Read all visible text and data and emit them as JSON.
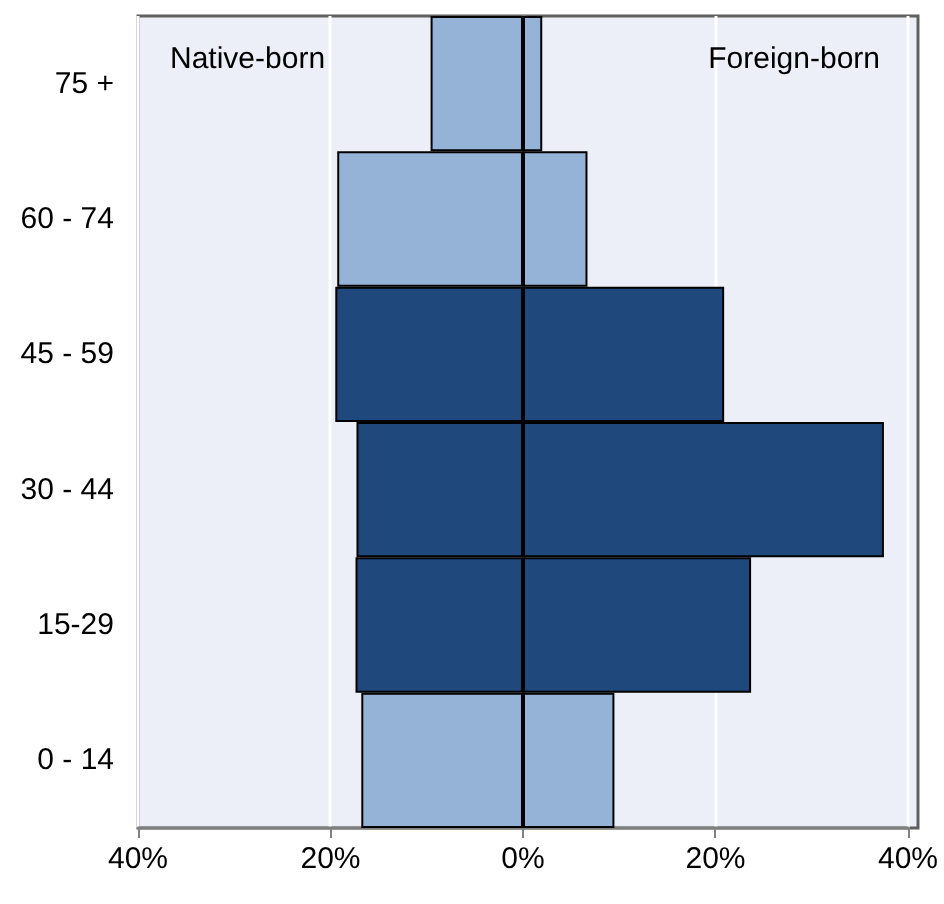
{
  "chart_data": {
    "type": "bar",
    "orientation": "horizontal",
    "stacked": true,
    "categories": [
      "75 +",
      "60 - 74",
      "45 - 59",
      "30 - 44",
      "15-29",
      "0 - 14"
    ],
    "series": [
      {
        "colors": [
          "#95b3d7",
          "#95b3d7",
          "#1f497d",
          "#1f497d",
          "#1f497d",
          "#95b3d7"
        ],
        "values": [
          -9.6,
          -19.3,
          -19.5,
          -17.3,
          -17.4,
          -16.8
        ]
      },
      {
        "colors": [
          "#95b3d7",
          "#95b3d7",
          "#1f497d",
          "#1f497d",
          "#1f497d",
          "#95b3d7"
        ],
        "values": [
          2.0,
          6.7,
          20.9,
          37.5,
          23.7,
          9.5
        ]
      }
    ],
    "xlim": [
      -40,
      40
    ],
    "xticks": [
      {
        "value": -40,
        "label": "40%"
      },
      {
        "value": -20,
        "label": "20%"
      },
      {
        "value": 0,
        "label": "0%"
      },
      {
        "value": 20,
        "label": "20%"
      },
      {
        "value": 40,
        "label": "40%"
      }
    ],
    "annotations": [
      "Native-born",
      "Foreign-born"
    ],
    "grid": "x"
  }
}
